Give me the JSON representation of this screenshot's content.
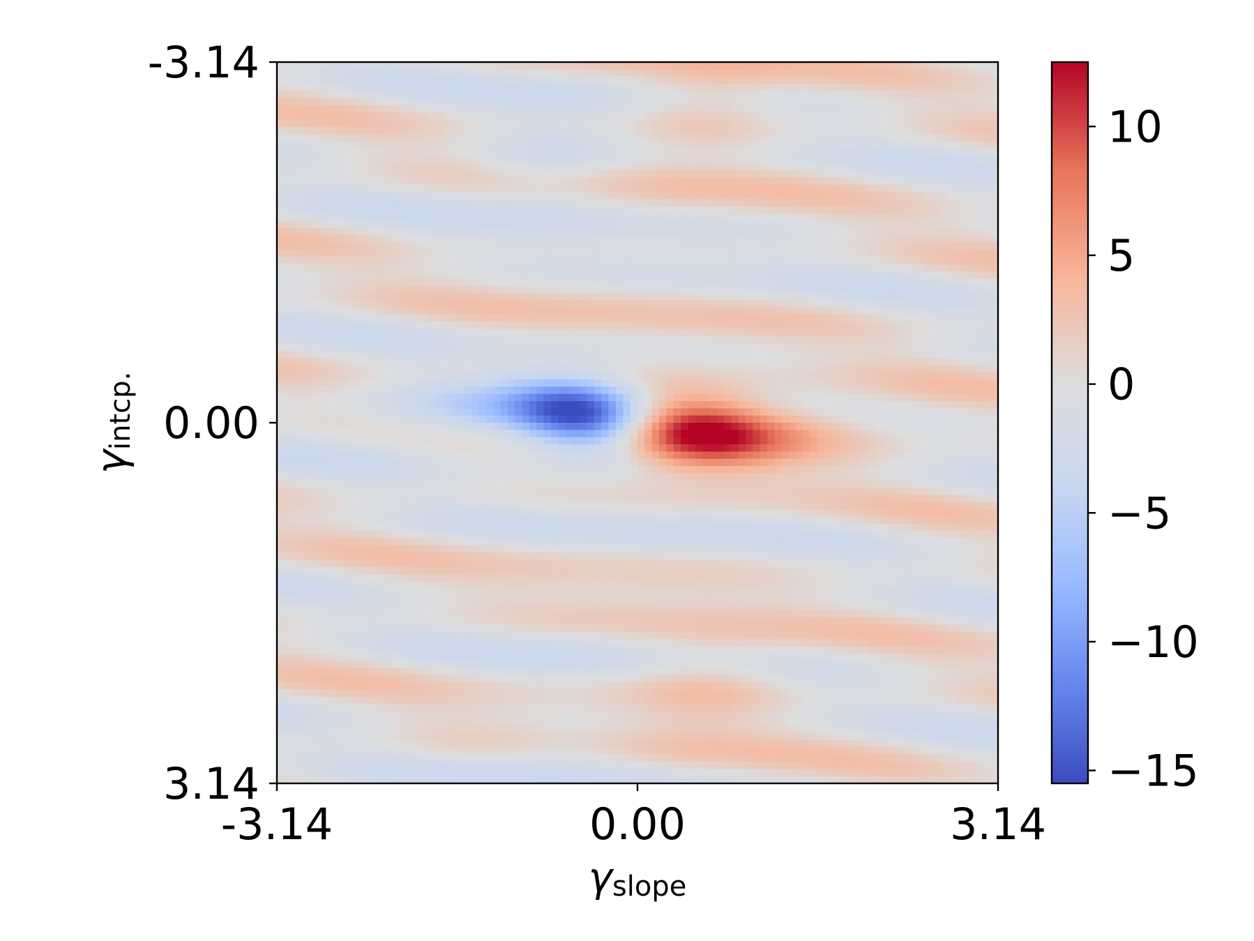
{
  "chart_data": {
    "type": "heatmap",
    "title": "",
    "xlabel": {
      "symbol": "γ",
      "subscript": "slope"
    },
    "ylabel": {
      "symbol": "γ",
      "subscript": "intcp."
    },
    "x_range": [
      -3.14,
      3.14
    ],
    "y_range": [
      -3.14,
      3.14
    ],
    "y_axis_inverted": true,
    "x_ticks": [
      -3.14,
      0.0,
      3.14
    ],
    "x_tick_labels": [
      "-3.14",
      "0.00",
      "3.14"
    ],
    "y_ticks": [
      -3.14,
      0.0,
      3.14
    ],
    "y_tick_labels": [
      "-3.14",
      "0.00",
      "3.14"
    ],
    "grid": false,
    "colormap": "coolwarm",
    "colormap_stops": [
      "#3b4cc0",
      "#6788ee",
      "#9abbff",
      "#c9d7f0",
      "#dddddd",
      "#f7b599",
      "#e7745b",
      "#b40426"
    ],
    "colorbar": {
      "range": [
        -15.5,
        12.5
      ],
      "ticks": [
        10,
        5,
        0,
        -5,
        -10,
        -15
      ],
      "tick_labels": [
        "10",
        "5",
        "0",
        "−5",
        "−10",
        "−15"
      ]
    },
    "features": [
      {
        "kind": "minimum",
        "x": -0.45,
        "y": -0.05,
        "value": -15
      },
      {
        "kind": "maximum",
        "x": 0.45,
        "y": 0.05,
        "value": 12
      }
    ]
  }
}
